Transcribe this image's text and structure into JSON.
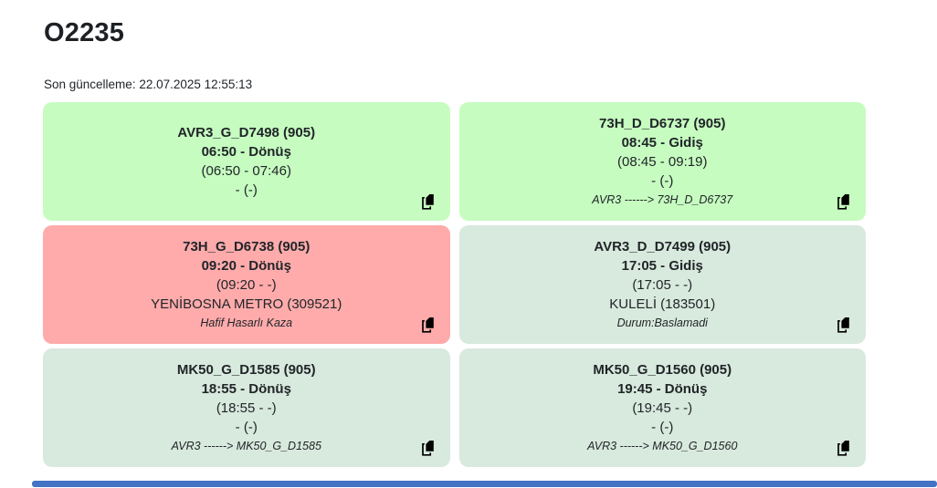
{
  "page": {
    "title": "O2235",
    "last_update": "Son güncelleme: 22.07.2025 12:55:13"
  },
  "colors": {
    "green": "#c6fcc0",
    "red": "#ffabab",
    "muted": "#d8e9dd",
    "text": "#212529",
    "scrollbar": "#4472c4"
  },
  "icons": {
    "copy": "copy-icon"
  },
  "cards": [
    {
      "variant": "green",
      "title": "AVR3_G_D7498 (905)",
      "time": "06:50 - Dönüş",
      "range": "(06:50 - 07:46)",
      "stop": "- (-)",
      "note": ""
    },
    {
      "variant": "green",
      "title": "73H_D_D6737 (905)",
      "time": "08:45 - Gidiş",
      "range": "(08:45 - 09:19)",
      "stop": "- (-)",
      "note": "AVR3 ------> 73H_D_D6737"
    },
    {
      "variant": "red",
      "title": "73H_G_D6738 (905)",
      "time": "09:20 - Dönüş",
      "range": "(09:20 - -)",
      "stop": "YENİBOSNA METRO (309521)",
      "note": "Hafif Hasarlı Kaza"
    },
    {
      "variant": "muted",
      "title": "AVR3_D_D7499 (905)",
      "time": "17:05 - Gidiş",
      "range": "(17:05 - -)",
      "stop": "KULELİ (183501)",
      "note": "Durum:Baslamadi"
    },
    {
      "variant": "muted",
      "title": "MK50_G_D1585 (905)",
      "time": "18:55 - Dönüş",
      "range": "(18:55 - -)",
      "stop": "- (-)",
      "note": "AVR3 ------> MK50_G_D1585"
    },
    {
      "variant": "muted",
      "title": "MK50_G_D1560 (905)",
      "time": "19:45 - Dönüş",
      "range": "(19:45 - -)",
      "stop": "- (-)",
      "note": "AVR3 ------> MK50_G_D1560"
    }
  ]
}
